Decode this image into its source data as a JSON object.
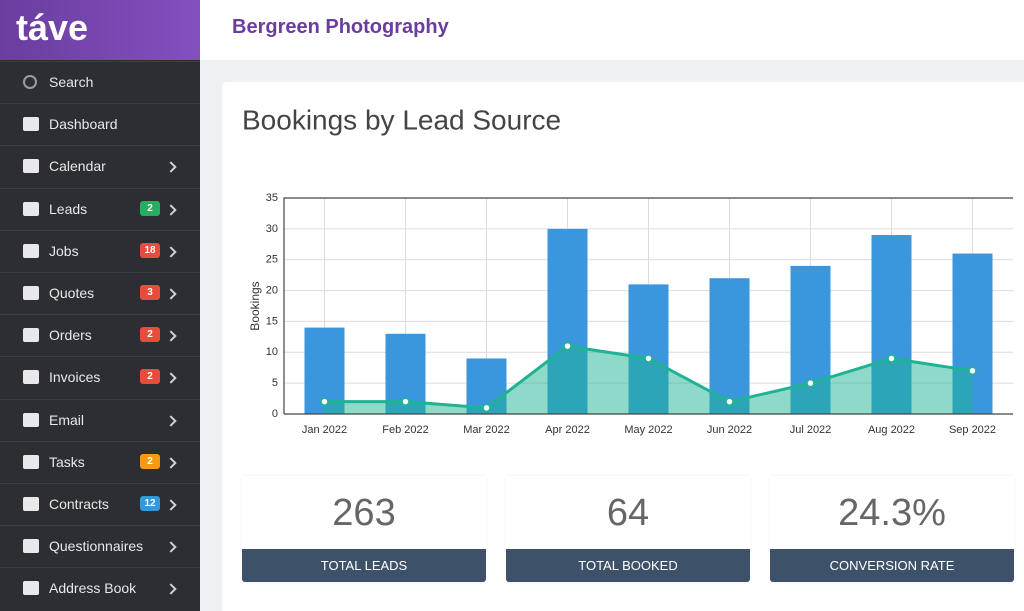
{
  "sidebar": {
    "logo": "táve",
    "items": [
      {
        "label": "Search"
      },
      {
        "label": "Dashboard"
      },
      {
        "label": "Calendar"
      },
      {
        "label": "Leads",
        "badge": 2,
        "badge_color": "#27ae60"
      },
      {
        "label": "Jobs",
        "badge": 18,
        "badge_color": "#e74c3c"
      },
      {
        "label": "Quotes",
        "badge": 3,
        "badge_color": "#e74c3c"
      },
      {
        "label": "Orders",
        "badge": 2,
        "badge_color": "#e74c3c"
      },
      {
        "label": "Invoices",
        "badge": 2,
        "badge_color": "#e74c3c"
      },
      {
        "label": "Email"
      },
      {
        "label": "Tasks",
        "badge": 2,
        "badge_color": "#f39c12"
      },
      {
        "label": "Contracts",
        "badge": 12,
        "badge_color": "#3498db"
      },
      {
        "label": "Questionnaires"
      },
      {
        "label": "Address Book"
      }
    ]
  },
  "header": {
    "title": "Bergreen Photography"
  },
  "chart_data": {
    "type": "bar",
    "title": "Bookings by Lead Source",
    "y_label": "Bookings",
    "categories": [
      "Jan 2022",
      "Feb 2022",
      "Mar 2022",
      "Apr 2022",
      "May 2022",
      "Jun 2022",
      "Jul 2022",
      "Aug 2022",
      "Sep 2022"
    ],
    "series": [
      {
        "type": "bar",
        "color": "#3a97dd",
        "values": [
          14,
          13,
          9,
          30,
          21,
          22,
          24,
          29,
          26
        ]
      },
      {
        "type": "area",
        "color": "#1fb394",
        "values": [
          2,
          2,
          1,
          11,
          9,
          2,
          5,
          9,
          7
        ]
      }
    ],
    "ylim": [
      0,
      35
    ],
    "yticks": [
      0,
      5,
      10,
      15,
      20,
      25,
      30,
      35
    ],
    "grid": true
  },
  "stats": [
    {
      "value": 263,
      "label": "TOTAL LEADS"
    },
    {
      "value": 64,
      "label": "TOTAL BOOKED"
    },
    {
      "value": "24.3%",
      "label": "CONVERSION RATE"
    }
  ]
}
